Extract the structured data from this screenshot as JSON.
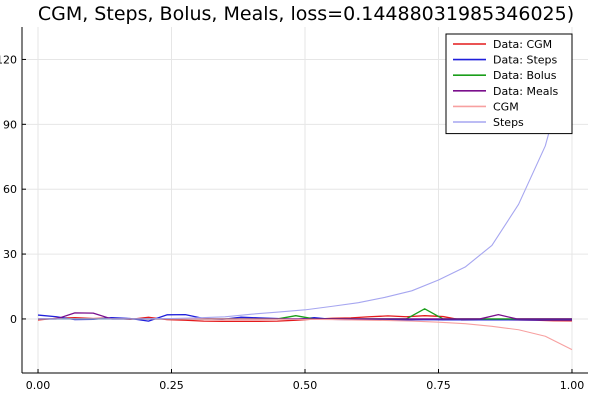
{
  "chart_data": {
    "type": "line",
    "title": "CGM, Steps, Bolus, Meals, loss=0.14488031985346025)",
    "xlabel": "",
    "ylabel": "",
    "xlim": [
      -0.03,
      1.03
    ],
    "ylim": [
      -25,
      135
    ],
    "xticks": [
      0.0,
      0.25,
      0.5,
      0.75,
      1.0
    ],
    "xtick_labels": [
      "0.00",
      "0.25",
      "0.50",
      "0.75",
      "1.00"
    ],
    "yticks": [
      0,
      30,
      60,
      90,
      120
    ],
    "ytick_labels": [
      "0",
      "30",
      "60",
      "90",
      "120"
    ],
    "grid": true,
    "legend_position": "top-right",
    "series": [
      {
        "name": "Data: CGM",
        "color": "#e41a1c",
        "width": 1.3,
        "x": [
          0.0,
          0.0345,
          0.069,
          0.1034,
          0.1379,
          0.1724,
          0.2069,
          0.2414,
          0.2759,
          0.3103,
          0.3448,
          0.3793,
          0.4138,
          0.4483,
          0.4828,
          0.5172,
          0.5517,
          0.5862,
          0.6207,
          0.6552,
          0.6897,
          0.7241,
          0.7586,
          0.7931,
          0.8276,
          0.8621,
          0.8966,
          0.931,
          0.9655,
          1.0
        ],
        "y": [
          -0.5,
          0.3,
          0.6,
          0.2,
          0.5,
          -0.2,
          0.8,
          -0.3,
          -0.6,
          -1.0,
          -1.1,
          -1.1,
          -1.1,
          -1.0,
          -0.6,
          -0.1,
          0.3,
          0.5,
          1.0,
          1.4,
          1.0,
          1.5,
          1.1,
          -0.5,
          -0.4,
          -0.3,
          -0.5,
          -0.6,
          -0.8,
          -0.9
        ]
      },
      {
        "name": "Data: Steps",
        "color": "#1f1fdb",
        "width": 1.3,
        "x": [
          0.0,
          0.0345,
          0.069,
          0.1034,
          0.1379,
          0.1724,
          0.2069,
          0.2414,
          0.2759,
          0.3103,
          0.3448,
          0.3793,
          0.4138,
          0.4483,
          0.4828,
          0.5172,
          0.5517,
          0.5862,
          0.6207,
          0.6552,
          0.6897,
          0.7241,
          0.7586,
          0.7931,
          0.8276,
          0.8621,
          0.8966,
          0.931,
          0.9655,
          1.0
        ],
        "y": [
          1.8,
          1.0,
          -0.3,
          -0.2,
          0.6,
          0.2,
          -1.0,
          1.9,
          2.0,
          0.2,
          -0.2,
          0.8,
          0.5,
          0.2,
          -0.2,
          0.6,
          -0.2,
          -0.3,
          -0.4,
          -0.4,
          -0.4,
          -0.3,
          -0.4,
          -0.4,
          -0.4,
          -0.4,
          -0.4,
          -0.5,
          -0.4,
          -0.4
        ]
      },
      {
        "name": "Data: Bolus",
        "color": "#1a9e1a",
        "width": 1.3,
        "x": [
          0.0,
          0.0345,
          0.069,
          0.1034,
          0.1379,
          0.1724,
          0.2069,
          0.2414,
          0.2759,
          0.3103,
          0.3448,
          0.3793,
          0.4138,
          0.4483,
          0.4828,
          0.5172,
          0.5517,
          0.5862,
          0.6207,
          0.6552,
          0.6897,
          0.7241,
          0.7586,
          0.7931,
          0.8276,
          0.8621,
          0.8966,
          0.931,
          0.9655,
          1.0
        ],
        "y": [
          0.0,
          0.0,
          0.0,
          0.0,
          0.0,
          0.0,
          0.0,
          0.0,
          0.0,
          0.0,
          0.0,
          0.0,
          0.0,
          0.0,
          1.5,
          0.0,
          0.0,
          0.0,
          0.0,
          0.0,
          0.0,
          4.7,
          0.0,
          0.0,
          0.0,
          0.0,
          0.0,
          0.0,
          0.0,
          0.0
        ]
      },
      {
        "name": "Data: Meals",
        "color": "#7a0f8c",
        "width": 1.3,
        "x": [
          0.0,
          0.0345,
          0.069,
          0.1034,
          0.1379,
          0.1724,
          0.2069,
          0.2414,
          0.2759,
          0.3103,
          0.3448,
          0.3793,
          0.4138,
          0.4483,
          0.4828,
          0.5172,
          0.5517,
          0.5862,
          0.6207,
          0.6552,
          0.6897,
          0.7241,
          0.7586,
          0.7931,
          0.8276,
          0.8621,
          0.8966,
          0.931,
          0.9655,
          1.0
        ],
        "y": [
          0.0,
          0.0,
          2.8,
          2.7,
          0.0,
          0.0,
          0.0,
          0.0,
          0.0,
          0.0,
          0.0,
          0.0,
          0.0,
          0.0,
          0.0,
          0.0,
          0.0,
          0.0,
          0.0,
          0.0,
          0.0,
          0.0,
          0.0,
          0.0,
          0.0,
          2.0,
          0.0,
          0.0,
          0.0,
          0.0
        ]
      },
      {
        "name": "CGM",
        "color": "#f7a0a0",
        "width": 1.1,
        "x": [
          0.0,
          0.05,
          0.1,
          0.15,
          0.2,
          0.25,
          0.3,
          0.35,
          0.4,
          0.45,
          0.5,
          0.55,
          0.6,
          0.65,
          0.7,
          0.75,
          0.8,
          0.85,
          0.9,
          0.95,
          1.0
        ],
        "y": [
          0.0,
          0.0,
          0.0,
          0.0,
          0.0,
          0.0,
          0.0,
          -0.05,
          -0.1,
          -0.15,
          -0.2,
          -0.3,
          -0.5,
          -0.7,
          -1.0,
          -1.5,
          -2.2,
          -3.4,
          -5.0,
          -8.0,
          -14.2
        ]
      },
      {
        "name": "Steps",
        "color": "#a6a6f0",
        "width": 1.1,
        "x": [
          0.0,
          0.05,
          0.1,
          0.15,
          0.2,
          0.25,
          0.3,
          0.35,
          0.4,
          0.45,
          0.5,
          0.55,
          0.6,
          0.65,
          0.7,
          0.75,
          0.8,
          0.85,
          0.9,
          0.95,
          1.0
        ],
        "y": [
          0.0,
          0.0,
          0.0,
          0.0,
          0.0,
          0.2,
          0.5,
          1.0,
          2.2,
          3.2,
          4.2,
          5.8,
          7.5,
          10.0,
          13.0,
          18.0,
          24.0,
          34.0,
          53.0,
          80.0,
          125.0
        ]
      }
    ]
  }
}
